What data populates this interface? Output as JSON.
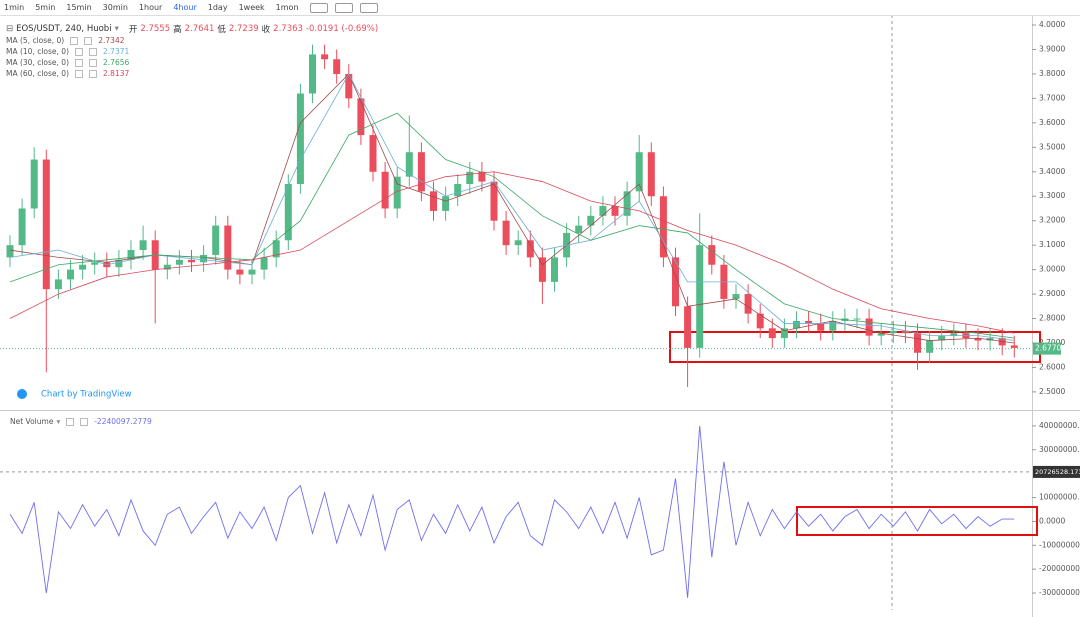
{
  "toolbar": {
    "intervals": [
      "1min",
      "5min",
      "15min",
      "30min",
      "1hour",
      "4hour",
      "1day",
      "1week",
      "1mon"
    ],
    "active": 5
  },
  "watermark": "Chart by TradingView",
  "chart_data": [
    {
      "type": "candlestick",
      "title": "EOS/USDT, 240, Huobi",
      "ohlc_legend": {
        "open_label": "开",
        "open": 2.7555,
        "high_label": "高",
        "high": 2.7641,
        "low_label": "低",
        "low": 2.7239,
        "close_label": "收",
        "close": 2.7363,
        "change": "-0.0191 (-0.69%)"
      },
      "up_color": "#53b987",
      "down_color": "#eb4d5c",
      "open": [
        3.05,
        3.1,
        3.25,
        3.45,
        2.92,
        2.96,
        3.0,
        3.02,
        3.03,
        3.01,
        3.04,
        3.08,
        3.12,
        3.0,
        3.02,
        3.04,
        3.03,
        3.06,
        3.18,
        3.0,
        2.98,
        3.0,
        3.05,
        3.12,
        3.35,
        3.72,
        3.88,
        3.86,
        3.8,
        3.7,
        3.55,
        3.4,
        3.25,
        3.38,
        3.48,
        3.32,
        3.24,
        3.3,
        3.35,
        3.4,
        3.36,
        3.2,
        3.1,
        3.12,
        3.05,
        2.95,
        3.05,
        3.15,
        3.18,
        3.22,
        3.26,
        3.22,
        3.32,
        3.48,
        3.3,
        3.05,
        2.85,
        2.68,
        3.1,
        3.02,
        2.88,
        2.9,
        2.82,
        2.76,
        2.72,
        2.76,
        2.79,
        2.78,
        2.75,
        2.79,
        2.8,
        2.8,
        2.73,
        2.74,
        2.75,
        2.74,
        2.66,
        2.71,
        2.73,
        2.74,
        2.72,
        2.71,
        2.72,
        2.69
      ],
      "high": [
        3.14,
        3.29,
        3.5,
        3.49,
        3.0,
        3.04,
        3.06,
        3.07,
        3.07,
        3.08,
        3.12,
        3.18,
        3.16,
        3.06,
        3.08,
        3.08,
        3.1,
        3.22,
        3.22,
        3.04,
        3.04,
        3.09,
        3.16,
        3.39,
        3.76,
        3.92,
        3.92,
        3.9,
        3.84,
        3.74,
        3.59,
        3.44,
        3.42,
        3.63,
        3.52,
        3.36,
        3.34,
        3.39,
        3.44,
        3.44,
        3.4,
        3.24,
        3.16,
        3.16,
        3.09,
        3.09,
        3.19,
        3.22,
        3.26,
        3.3,
        3.3,
        3.36,
        3.55,
        3.52,
        3.34,
        3.09,
        2.89,
        3.23,
        3.14,
        3.06,
        2.94,
        2.94,
        2.86,
        2.8,
        2.8,
        2.83,
        2.83,
        2.82,
        2.83,
        2.84,
        2.84,
        2.84,
        2.78,
        2.79,
        2.79,
        2.78,
        2.75,
        2.77,
        2.78,
        2.78,
        2.76,
        2.76,
        2.76,
        2.73
      ],
      "low": [
        3.01,
        3.06,
        3.21,
        2.58,
        2.88,
        2.92,
        2.96,
        2.98,
        2.97,
        2.97,
        3.0,
        3.04,
        2.78,
        2.96,
        2.98,
        2.99,
        2.99,
        3.02,
        2.96,
        2.94,
        2.94,
        2.96,
        3.01,
        3.08,
        3.31,
        3.68,
        3.82,
        3.76,
        3.66,
        3.51,
        3.36,
        3.21,
        3.21,
        3.34,
        3.28,
        3.2,
        3.2,
        3.26,
        3.31,
        3.32,
        3.16,
        3.06,
        3.06,
        3.01,
        2.86,
        2.91,
        3.01,
        3.11,
        3.14,
        3.18,
        3.18,
        3.18,
        3.28,
        3.26,
        3.01,
        2.81,
        2.52,
        2.64,
        2.98,
        2.84,
        2.84,
        2.78,
        2.72,
        2.68,
        2.68,
        2.72,
        2.74,
        2.71,
        2.71,
        2.75,
        2.76,
        2.69,
        2.69,
        2.7,
        2.7,
        2.59,
        2.62,
        2.67,
        2.69,
        2.68,
        2.67,
        2.67,
        2.65,
        2.64
      ],
      "close": [
        3.1,
        3.25,
        3.45,
        2.92,
        2.96,
        3.0,
        3.02,
        3.03,
        3.01,
        3.04,
        3.08,
        3.12,
        3.0,
        3.02,
        3.04,
        3.03,
        3.06,
        3.18,
        3.0,
        2.98,
        3.0,
        3.05,
        3.12,
        3.35,
        3.72,
        3.88,
        3.86,
        3.8,
        3.7,
        3.55,
        3.4,
        3.25,
        3.38,
        3.48,
        3.32,
        3.24,
        3.3,
        3.35,
        3.4,
        3.36,
        3.2,
        3.1,
        3.12,
        3.05,
        2.95,
        3.05,
        3.15,
        3.18,
        3.22,
        3.26,
        3.22,
        3.32,
        3.48,
        3.3,
        3.05,
        2.85,
        2.68,
        3.1,
        3.02,
        2.88,
        2.9,
        2.82,
        2.76,
        2.72,
        2.76,
        2.79,
        2.78,
        2.75,
        2.79,
        2.8,
        2.8,
        2.73,
        2.74,
        2.75,
        2.74,
        2.66,
        2.71,
        2.73,
        2.74,
        2.72,
        2.71,
        2.72,
        2.69,
        2.68
      ],
      "series": [
        {
          "name": "MA (5, close, 0)",
          "color": "#a34a4a",
          "last": 2.7342,
          "x": [
            0,
            4,
            8,
            12,
            16,
            20,
            24,
            28,
            32,
            36,
            40,
            44,
            48,
            52,
            56,
            60,
            64,
            68,
            72,
            76,
            80,
            83
          ],
          "values": [
            3.08,
            3.05,
            3.03,
            3.06,
            3.05,
            3.02,
            3.6,
            3.8,
            3.35,
            3.28,
            3.35,
            3.02,
            3.18,
            3.35,
            2.85,
            2.88,
            2.75,
            2.79,
            2.74,
            2.71,
            2.72,
            2.7
          ]
        },
        {
          "name": "MA (10, close, 0)",
          "color": "#6aaed6",
          "last": 2.7371,
          "x": [
            0,
            4,
            8,
            12,
            16,
            20,
            24,
            28,
            32,
            36,
            40,
            44,
            48,
            52,
            56,
            60,
            64,
            68,
            72,
            76,
            80,
            83
          ],
          "values": [
            3.05,
            3.08,
            3.02,
            3.06,
            3.04,
            3.02,
            3.45,
            3.8,
            3.42,
            3.3,
            3.36,
            3.08,
            3.12,
            3.28,
            2.95,
            2.95,
            2.78,
            2.78,
            2.77,
            2.73,
            2.73,
            2.71
          ]
        },
        {
          "name": "MA (30, close, 0)",
          "color": "#3aa866",
          "last": 2.7656,
          "x": [
            0,
            4,
            8,
            12,
            16,
            20,
            24,
            28,
            32,
            36,
            40,
            44,
            48,
            52,
            56,
            60,
            64,
            68,
            72,
            76,
            80,
            83
          ],
          "values": [
            2.95,
            3.02,
            3.04,
            3.06,
            3.05,
            3.04,
            3.2,
            3.55,
            3.64,
            3.45,
            3.38,
            3.22,
            3.12,
            3.18,
            3.15,
            3.0,
            2.86,
            2.8,
            2.78,
            2.76,
            2.74,
            2.72
          ]
        },
        {
          "name": "MA (60, close, 0)",
          "color": "#d9475a",
          "last": 2.8137,
          "x": [
            0,
            4,
            8,
            12,
            16,
            20,
            24,
            28,
            32,
            36,
            40,
            44,
            48,
            52,
            56,
            60,
            64,
            68,
            72,
            76,
            80,
            83
          ],
          "values": [
            2.8,
            2.9,
            2.97,
            3.0,
            3.02,
            3.04,
            3.08,
            3.2,
            3.32,
            3.38,
            3.4,
            3.36,
            3.28,
            3.24,
            3.16,
            3.1,
            3.02,
            2.92,
            2.84,
            2.8,
            2.77,
            2.74
          ]
        }
      ],
      "last_price": {
        "value": 2.677,
        "label": "2.6770"
      },
      "ylim": [
        2.426,
        4.041
      ],
      "yticks": [
        {
          "value": 2.5,
          "label": "2.5000"
        },
        {
          "value": 2.6,
          "label": "2.6000"
        },
        {
          "value": 2.7,
          "label": "2.7000"
        },
        {
          "value": 2.8,
          "label": "2.8000"
        },
        {
          "value": 2.9,
          "label": "2.9000"
        },
        {
          "value": 3.0,
          "label": "3.0000"
        },
        {
          "value": 3.1,
          "label": "3.1000"
        },
        {
          "value": 3.2,
          "label": "3.2000"
        },
        {
          "value": 3.3,
          "label": "3.3000"
        },
        {
          "value": 3.4,
          "label": "3.4000"
        },
        {
          "value": 3.5,
          "label": "3.5000"
        },
        {
          "value": 3.6,
          "label": "3.6000"
        },
        {
          "value": 3.7,
          "label": "3.7000"
        },
        {
          "value": 3.8,
          "label": "3.8000"
        },
        {
          "value": 3.9,
          "label": "3.9000"
        },
        {
          "value": 4.0,
          "label": "4.0000"
        }
      ]
    },
    {
      "type": "line",
      "title": "Net Volume",
      "last": -2240097.2779,
      "color": "#6f6ff2",
      "values": [
        3000000,
        -5000000,
        8000000,
        -30000000,
        4000000,
        -3000000,
        7000000,
        -2000000,
        5000000,
        -6000000,
        9000000,
        -4000000,
        -10000000,
        3000000,
        6000000,
        -5000000,
        2000000,
        8000000,
        -7000000,
        4000000,
        -3000000,
        6000000,
        -8000000,
        10000000,
        15000000,
        -5000000,
        12000000,
        -9000000,
        7000000,
        -6000000,
        11000000,
        -12000000,
        5000000,
        9000000,
        -8000000,
        3000000,
        -5000000,
        7000000,
        -4000000,
        6000000,
        -9000000,
        2000000,
        8000000,
        -6000000,
        -10000000,
        9000000,
        4000000,
        -3000000,
        6000000,
        -5000000,
        8000000,
        -7000000,
        10000000,
        -14000000,
        -12000000,
        18000000,
        -32000000,
        40000000,
        -15000000,
        25000000,
        -10000000,
        8000000,
        -6000000,
        5000000,
        -3000000,
        4000000,
        -2000000,
        3000000,
        -4000000,
        2000000,
        5000000,
        -3000000,
        3000000,
        -2000000,
        4000000,
        -4000000,
        5000000,
        -1000000,
        3000000,
        -3000000,
        2000000,
        -2000000,
        1000000,
        1000000
      ],
      "crosshair": 20726528.1733,
      "ylim": [
        -37100000,
        45400000
      ],
      "yticks": [
        {
          "value": 40000000,
          "label": "40000000.0000"
        },
        {
          "value": 30000000,
          "label": "30000000.0000"
        },
        {
          "value": 10000000,
          "label": "10000000.0000"
        },
        {
          "value": 0,
          "label": "0.0000"
        },
        {
          "value": -10000000,
          "label": "-10000000.0000"
        },
        {
          "value": -20000000,
          "label": "-20000000.0000"
        },
        {
          "value": -30000000,
          "label": "-30000000.0000"
        }
      ]
    }
  ]
}
